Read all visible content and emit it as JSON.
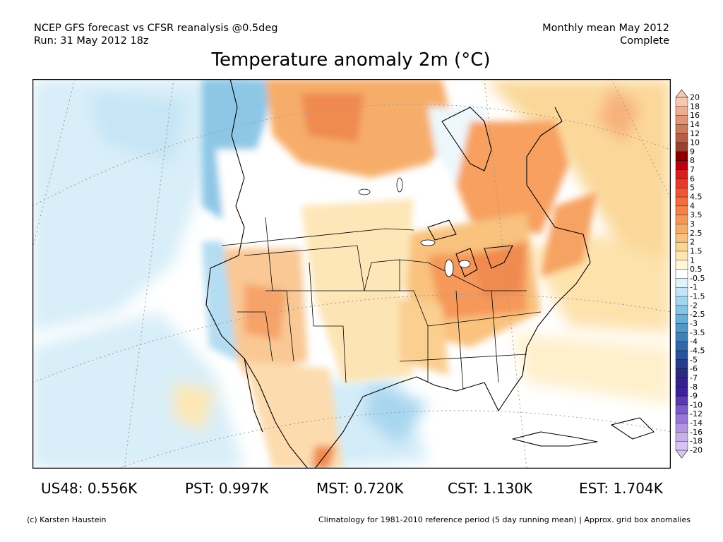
{
  "header": {
    "left_line1": "NCEP GFS forecast vs CFSR reanalysis @0.5deg",
    "left_line2": "Run: 31 May 2012 18z",
    "right_line1": "Monthly mean May 2012",
    "right_line2": "Complete"
  },
  "title": "Temperature anomaly 2m (°C)",
  "legend": {
    "labels": [
      "20",
      "18",
      "16",
      "14",
      "12",
      "10",
      "9",
      "8",
      "7",
      "6",
      "5",
      "4.5",
      "4",
      "3.5",
      "3",
      "2.5",
      "2",
      "1.5",
      "1",
      "0.5",
      "-0.5",
      "-1",
      "-1.5",
      "-2",
      "-2.5",
      "-3",
      "-3.5",
      "-4",
      "-4.5",
      "-5",
      "-6",
      "-7",
      "-8",
      "-9",
      "-10",
      "-12",
      "-14",
      "-16",
      "-18",
      "-20"
    ],
    "colors": [
      "#f6c8b0",
      "#eeae92",
      "#e09576",
      "#cd7a5d",
      "#b55f47",
      "#9a4230",
      "#8a0000",
      "#b80010",
      "#d62020",
      "#e83a2a",
      "#ef5638",
      "#f36d40",
      "#f4834a",
      "#f5985a",
      "#f7ad6a",
      "#f9c27e",
      "#fbd595",
      "#fde7b2",
      "#fff7dc",
      "#ffffff",
      "#e0f2fc",
      "#c3e5f7",
      "#a4d5ef",
      "#86c3e4",
      "#6aafd8",
      "#5298c8",
      "#4080b8",
      "#3068aa",
      "#2a519c",
      "#263c8e",
      "#2a2a82",
      "#35228a",
      "#402098",
      "#5a3ab4",
      "#7a5ac8",
      "#9878d6",
      "#b296e0",
      "#c8b0ea",
      "#d8c4f2"
    ]
  },
  "stats": [
    {
      "label": "US48:",
      "value": "0.556K"
    },
    {
      "label": "PST:",
      "value": "0.997K"
    },
    {
      "label": "MST:",
      "value": "0.720K"
    },
    {
      "label": "CST:",
      "value": "1.130K"
    },
    {
      "label": "EST:",
      "value": "1.704K"
    }
  ],
  "footer": {
    "left": "(c) Karsten Haustein",
    "right": "Climatology for 1981-2010 reference period (5 day running mean) | Approx. grid box anomalies"
  }
}
